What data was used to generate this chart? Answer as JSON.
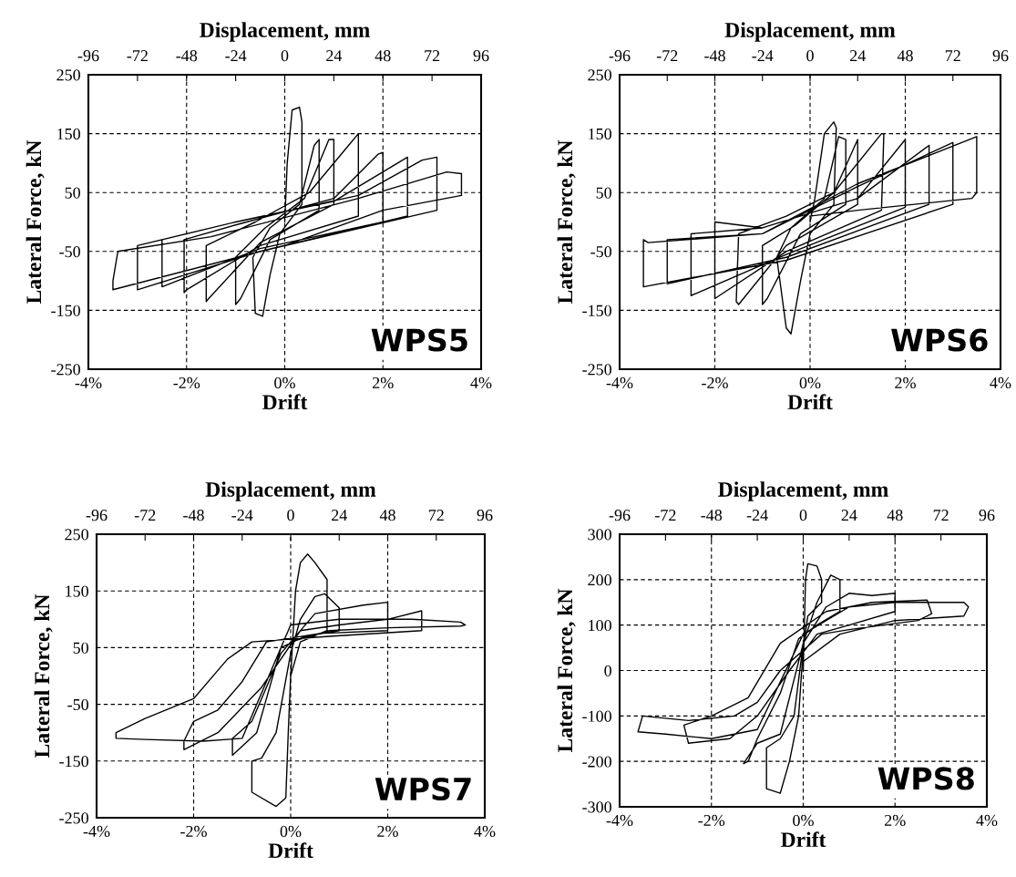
{
  "chart_data": [
    {
      "type": "line",
      "xlabel": "Drift",
      "x2label": "Displacement, mm",
      "ylabel": "Lateral Force, kN",
      "annotations": [
        "WPS5"
      ],
      "grid": true,
      "marker": "none",
      "line_style": "solid",
      "xlim": [
        -4,
        4
      ],
      "xticks": [
        {
          "value": -4,
          "label": "-4%"
        },
        {
          "value": -2,
          "label": "-2%"
        },
        {
          "value": 0,
          "label": "0%"
        },
        {
          "value": 2,
          "label": "2%"
        },
        {
          "value": 4,
          "label": "4%"
        }
      ],
      "x2lim": [
        -96,
        96
      ],
      "x2ticks": [
        -96,
        -72,
        -48,
        -24,
        0,
        24,
        48,
        72,
        96
      ],
      "ylim": [
        -250,
        250
      ],
      "yticks": [
        -250,
        -150,
        -50,
        50,
        150,
        250
      ],
      "series": [
        {
          "color": "#000000",
          "x": [
            0,
            0.05,
            0.15,
            0.3,
            0.35,
            0.35,
            -0.1,
            -0.3,
            -0.45,
            -0.6,
            -0.65,
            -0.3,
            0.3,
            0.6,
            0.7,
            0.7,
            -0.3,
            -0.9,
            -1.0,
            -1.0,
            -0.4,
            0.4,
            0.9,
            1.0,
            1.0,
            -0.5,
            -1.55,
            -1.6,
            -1.6,
            -0.6,
            0.5,
            1.3,
            1.5,
            1.5,
            -0.5,
            -2.0,
            -2.05,
            -2.05,
            -1.0,
            1.0,
            1.9,
            2.0,
            2.0,
            -0.5,
            -2.5,
            -2.5,
            -1.0,
            1.0,
            2.3,
            2.5,
            2.5,
            -0.5,
            -3.0,
            -3.0,
            -1.0,
            1.5,
            2.8,
            3.1,
            3.1,
            -0.5,
            -3.5,
            -3.5,
            -3.4,
            -1.5,
            1.5,
            3.3,
            3.6,
            3.6,
            2.0,
            0
          ],
          "values": [
            0,
            100,
            190,
            195,
            170,
            30,
            -20,
            -90,
            -160,
            -155,
            -60,
            -10,
            30,
            130,
            140,
            20,
            -30,
            -130,
            -140,
            -60,
            -10,
            40,
            140,
            140,
            30,
            -35,
            -130,
            -135,
            -40,
            0,
            50,
            130,
            150,
            10,
            -40,
            -115,
            -120,
            -30,
            -5,
            40,
            115,
            118,
            0,
            -45,
            -110,
            -30,
            0,
            35,
            100,
            110,
            10,
            -50,
            -115,
            -40,
            0,
            45,
            105,
            110,
            20,
            -50,
            -115,
            -100,
            -50,
            -25,
            40,
            85,
            82,
            45,
            20,
            -40
          ]
        }
      ]
    },
    {
      "type": "line",
      "xlabel": "Drift",
      "x2label": "Displacement, mm",
      "ylabel": "Lateral Force, kN",
      "annotations": [
        "WPS6"
      ],
      "grid": true,
      "marker": "none",
      "line_style": "solid",
      "xlim": [
        -4,
        4
      ],
      "xticks": [
        {
          "value": -4,
          "label": "-4%"
        },
        {
          "value": -2,
          "label": "-2%"
        },
        {
          "value": 0,
          "label": "0%"
        },
        {
          "value": 2,
          "label": "2%"
        },
        {
          "value": 4,
          "label": "4%"
        }
      ],
      "x2lim": [
        -96,
        96
      ],
      "x2ticks": [
        -96,
        -72,
        -48,
        -24,
        0,
        24,
        48,
        72,
        96
      ],
      "ylim": [
        -250,
        250
      ],
      "yticks": [
        -250,
        -150,
        -50,
        50,
        150,
        250
      ],
      "series": [
        {
          "color": "#000000",
          "x": [
            0,
            0.1,
            0.3,
            0.5,
            0.55,
            0.5,
            0.0,
            -0.2,
            -0.4,
            -0.5,
            -0.7,
            -0.4,
            0.3,
            0.6,
            0.75,
            0.75,
            -0.2,
            -0.9,
            -1.0,
            -1.0,
            -0.3,
            0.5,
            1.0,
            1.0,
            -0.5,
            -1.5,
            -1.55,
            -1.5,
            -0.5,
            0.5,
            1.5,
            1.55,
            1.5,
            -0.5,
            -2.0,
            -2.0,
            -1.0,
            1.0,
            2.0,
            2.0,
            -0.5,
            -2.5,
            -2.5,
            -1.0,
            1.0,
            2.5,
            2.5,
            -0.5,
            -3.0,
            -3.0,
            -1.0,
            1.0,
            3.0,
            3.0,
            -0.5,
            -3.5,
            -3.5,
            -3.4,
            -1.0,
            1.0,
            3.5,
            3.5,
            3.4,
            1.0,
            0
          ],
          "values": [
            0,
            40,
            150,
            170,
            160,
            30,
            -20,
            -100,
            -190,
            -180,
            -60,
            -10,
            40,
            145,
            140,
            30,
            -20,
            -130,
            -140,
            -40,
            -5,
            50,
            140,
            30,
            -40,
            -140,
            -135,
            -20,
            10,
            50,
            150,
            150,
            20,
            -50,
            -130,
            0,
            -10,
            40,
            140,
            25,
            -55,
            -125,
            -20,
            -10,
            40,
            130,
            30,
            -60,
            -105,
            -30,
            -20,
            60,
            135,
            30,
            -65,
            -110,
            -30,
            -35,
            -20,
            65,
            145,
            50,
            40,
            20,
            10
          ]
        }
      ]
    },
    {
      "type": "line",
      "xlabel": "Drift",
      "x2label": "Displacement, mm",
      "ylabel": "Lateral Force, kN",
      "annotations": [
        "WPS7"
      ],
      "grid": true,
      "marker": "none",
      "line_style": "solid",
      "xlim": [
        -4,
        4
      ],
      "xticks": [
        {
          "value": -4,
          "label": "-4%"
        },
        {
          "value": -2,
          "label": "-2%"
        },
        {
          "value": 0,
          "label": "0%"
        },
        {
          "value": 2,
          "label": "2%"
        },
        {
          "value": 4,
          "label": "4%"
        }
      ],
      "x2lim": [
        -96,
        96
      ],
      "x2ticks": [
        -96,
        -72,
        -48,
        -24,
        0,
        24,
        48,
        72,
        96
      ],
      "ylim": [
        -250,
        250
      ],
      "yticks": [
        -250,
        -150,
        -50,
        50,
        150,
        250
      ],
      "series": [
        {
          "color": "#000000",
          "x": [
            0,
            0.1,
            0.2,
            0.35,
            0.5,
            0.75,
            0.75,
            0.2,
            0.0,
            -0.05,
            -0.1,
            -0.3,
            -0.8,
            -0.8,
            -0.6,
            -0.3,
            0.0,
            0.2,
            0.5,
            0.7,
            1.0,
            1.0,
            0.3,
            -0.2,
            -0.5,
            -0.7,
            -1.2,
            -1.2,
            -0.8,
            -0.2,
            0.5,
            1.5,
            2.0,
            2.0,
            0.6,
            -0.5,
            -1.0,
            -1.5,
            -2.0,
            -2.2,
            -2.2,
            -1.5,
            -0.6,
            0.2,
            1.0,
            2.0,
            2.7,
            2.7,
            0.8,
            -0.8,
            -1.3,
            -2.0,
            -3.0,
            -3.6,
            -3.6,
            -3.0,
            -1.8,
            -1.0,
            0.0,
            1.0,
            2.5,
            3.5,
            3.6,
            3.5,
            2.0,
            0.8,
            0
          ],
          "values": [
            0,
            150,
            200,
            215,
            200,
            170,
            80,
            60,
            0,
            -100,
            -215,
            -230,
            -205,
            -150,
            -145,
            -100,
            40,
            100,
            140,
            145,
            120,
            80,
            70,
            50,
            -40,
            -100,
            -140,
            -110,
            -80,
            40,
            110,
            125,
            130,
            80,
            75,
            60,
            -10,
            -60,
            -80,
            -115,
            -130,
            -100,
            -20,
            80,
            90,
            100,
            115,
            80,
            70,
            60,
            30,
            -40,
            -75,
            -100,
            -110,
            -112,
            -115,
            -110,
            90,
            100,
            100,
            95,
            90,
            88,
            85,
            80,
            60
          ]
        }
      ]
    },
    {
      "type": "line",
      "xlabel": "Drift",
      "x2label": "Displacement, mm",
      "ylabel": "Lateral Force, kN",
      "annotations": [
        "WPS8"
      ],
      "grid": true,
      "marker": "none",
      "line_style": "solid",
      "xlim": [
        -4,
        4
      ],
      "xticks": [
        {
          "value": -4,
          "label": "-4%"
        },
        {
          "value": -2,
          "label": "-2%"
        },
        {
          "value": 0,
          "label": "0%"
        },
        {
          "value": 2,
          "label": "2%"
        },
        {
          "value": 4,
          "label": "4%"
        }
      ],
      "x2lim": [
        -96,
        96
      ],
      "x2ticks": [
        -96,
        -72,
        -48,
        -24,
        0,
        24,
        48,
        72,
        96
      ],
      "ylim": [
        -300,
        300
      ],
      "yticks": [
        -300,
        -200,
        -100,
        0,
        100,
        200,
        300
      ],
      "series": [
        {
          "color": "#000000",
          "x": [
            0,
            0.05,
            0.1,
            0.3,
            0.4,
            0.4,
            0.1,
            0.0,
            -0.1,
            -0.3,
            -0.5,
            -0.8,
            -0.8,
            -0.5,
            -0.2,
            0.0,
            0.3,
            0.6,
            0.8,
            0.8,
            0.3,
            -0.1,
            -0.5,
            -1.0,
            -1.2,
            -1.3,
            -1.0,
            -0.5,
            0.0,
            0.5,
            1.0,
            1.5,
            2.0,
            2.0,
            1.0,
            0.3,
            -0.3,
            -1.0,
            -1.6,
            -2.5,
            -2.6,
            -2.0,
            -1.2,
            -0.5,
            0.5,
            1.5,
            2.7,
            2.8,
            2.5,
            1.0,
            0.4,
            -0.5,
            -1.0,
            -1.5,
            -2.5,
            -3.5,
            -3.6,
            -3.0,
            -2.0,
            -1.0,
            0.0,
            1.0,
            2.0,
            3.5,
            3.6,
            3.5,
            2.0,
            0.8,
            0
          ],
          "values": [
            0,
            200,
            235,
            230,
            200,
            150,
            120,
            50,
            -100,
            -200,
            -270,
            -260,
            -170,
            -150,
            -100,
            60,
            150,
            210,
            200,
            130,
            100,
            70,
            -50,
            -150,
            -200,
            -205,
            -160,
            -140,
            60,
            140,
            170,
            165,
            170,
            130,
            100,
            80,
            0,
            -100,
            -150,
            -160,
            -120,
            -100,
            -60,
            60,
            130,
            150,
            155,
            125,
            110,
            90,
            80,
            0,
            -70,
            -100,
            -110,
            -100,
            -135,
            -140,
            -150,
            -130,
            80,
            140,
            150,
            150,
            140,
            120,
            110,
            80,
            20
          ]
        }
      ]
    }
  ]
}
